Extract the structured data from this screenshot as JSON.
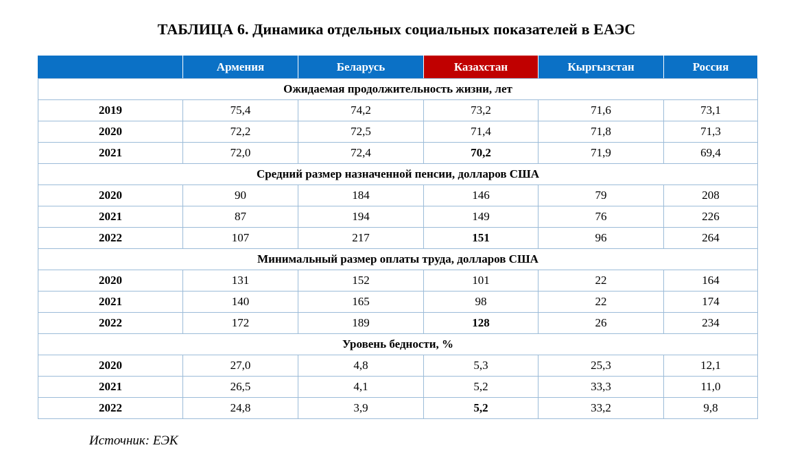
{
  "title": "ТАБЛИЦА 6. Динамика отдельных социальных показателей в ЕАЭС",
  "columns": [
    "",
    "Армения",
    "Беларусь",
    "Казахстан",
    "Кыргызстан",
    "Россия"
  ],
  "highlight_color": "#c00000",
  "header_color": "#0b71c6",
  "sections": [
    {
      "label": "Ожидаемая продолжительность жизни, лет",
      "rows": [
        {
          "year": "2019",
          "values": [
            "75,4",
            "74,2",
            "73,2",
            "71,6",
            "73,1"
          ]
        },
        {
          "year": "2020",
          "values": [
            "72,2",
            "72,5",
            "71,4",
            "71,8",
            "71,3"
          ]
        },
        {
          "year": "2021",
          "values": [
            "72,0",
            "72,4",
            "70,2",
            "71,9",
            "69,4"
          ]
        }
      ]
    },
    {
      "label": "Средний размер назначенной пенсии, долларов США",
      "rows": [
        {
          "year": "2020",
          "values": [
            "90",
            "184",
            "146",
            "79",
            "208"
          ]
        },
        {
          "year": "2021",
          "values": [
            "87",
            "194",
            "149",
            "76",
            "226"
          ]
        },
        {
          "year": "2022",
          "values": [
            "107",
            "217",
            "151",
            "96",
            "264"
          ]
        }
      ]
    },
    {
      "label": "Минимальный размер оплаты труда, долларов США",
      "rows": [
        {
          "year": "2020",
          "values": [
            "131",
            "152",
            "101",
            "22",
            "164"
          ]
        },
        {
          "year": "2021",
          "values": [
            "140",
            "165",
            "98",
            "22",
            "174"
          ]
        },
        {
          "year": "2022",
          "values": [
            "172",
            "189",
            "128",
            "26",
            "234"
          ]
        }
      ]
    },
    {
      "label": "Уровень бедности, %",
      "rows": [
        {
          "year": "2020",
          "values": [
            "27,0",
            "4,8",
            "5,3",
            "25,3",
            "12,1"
          ]
        },
        {
          "year": "2021",
          "values": [
            "26,5",
            "4,1",
            "5,2",
            "33,3",
            "11,0"
          ]
        },
        {
          "year": "2022",
          "values": [
            "24,8",
            "3,9",
            "5,2",
            "33,2",
            "9,8"
          ]
        }
      ]
    }
  ],
  "source": "Источник: ЕЭК"
}
